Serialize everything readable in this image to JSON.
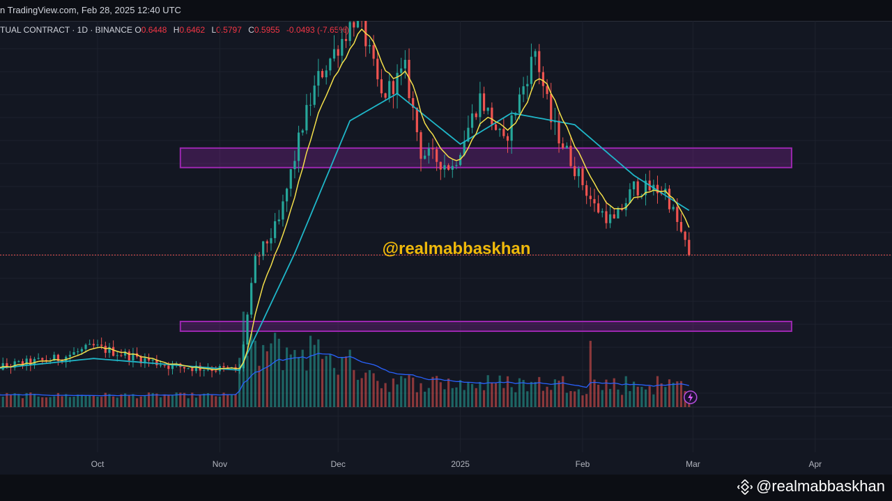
{
  "header": {
    "published": "n TradingView.com, Feb 28, 2025 12:40 UTC"
  },
  "legend": {
    "symbol": "TUAL CONTRACT · 1D · BINANCE",
    "o_label": "O",
    "o": "0.6448",
    "h_label": "H",
    "h": "0.6462",
    "l_label": "L",
    "l": "0.5797",
    "c_label": "C",
    "c": "0.5955",
    "change": "-0.0493 (-7.65%)"
  },
  "overlay_text": "@realmabbaskhan",
  "watermark": "@realmabbaskhan",
  "colors": {
    "background": "#131722",
    "up": "#26a69a",
    "down": "#ef5350",
    "ema_fast": "#f5e04a",
    "ema_slow": "#1fb7c9",
    "zone": "#9c27b0",
    "overlay": "#f0b90b",
    "volume_ma": "#2962ff"
  },
  "chart_data": {
    "type": "candlestick",
    "x_tick_labels": [
      "Oct",
      "Nov",
      "Dec",
      "2025",
      "Feb",
      "Mar",
      "Apr"
    ],
    "x_tick_dates": [
      "2024-10-01",
      "2024-11-01",
      "2024-12-01",
      "2025-01-01",
      "2025-02-01",
      "2025-03-01",
      "2025-04-01"
    ],
    "last_price": 0.5955,
    "price_keypoints": [
      {
        "date": "2024-09-01",
        "price": 0.3
      },
      {
        "date": "2024-09-21",
        "price": 0.33
      },
      {
        "date": "2024-09-30",
        "price": 0.36
      },
      {
        "date": "2024-10-20",
        "price": 0.31
      },
      {
        "date": "2024-11-06",
        "price": 0.3
      },
      {
        "date": "2024-11-10",
        "price": 0.58
      },
      {
        "date": "2024-11-16",
        "price": 0.68
      },
      {
        "date": "2024-11-22",
        "price": 0.93
      },
      {
        "date": "2024-11-26",
        "price": 1.05
      },
      {
        "date": "2024-12-02",
        "price": 1.15
      },
      {
        "date": "2024-12-06",
        "price": 1.22
      },
      {
        "date": "2024-12-12",
        "price": 1.0
      },
      {
        "date": "2024-12-18",
        "price": 1.07
      },
      {
        "date": "2024-12-22",
        "price": 0.86
      },
      {
        "date": "2024-12-30",
        "price": 0.82
      },
      {
        "date": "2025-01-06",
        "price": 1.0
      },
      {
        "date": "2025-01-12",
        "price": 0.88
      },
      {
        "date": "2025-01-20",
        "price": 1.12
      },
      {
        "date": "2025-01-24",
        "price": 0.94
      },
      {
        "date": "2025-01-30",
        "price": 0.82
      },
      {
        "date": "2025-02-04",
        "price": 0.72
      },
      {
        "date": "2025-02-09",
        "price": 0.68
      },
      {
        "date": "2025-02-14",
        "price": 0.77
      },
      {
        "date": "2025-02-22",
        "price": 0.76
      },
      {
        "date": "2025-02-28",
        "price": 0.5955
      }
    ],
    "ema_slow_keypoints": [
      {
        "date": "2024-09-01",
        "price": 0.3
      },
      {
        "date": "2024-09-30",
        "price": 0.33
      },
      {
        "date": "2024-11-06",
        "price": 0.3
      },
      {
        "date": "2024-11-20",
        "price": 0.6
      },
      {
        "date": "2024-12-04",
        "price": 0.94
      },
      {
        "date": "2024-12-16",
        "price": 1.01
      },
      {
        "date": "2025-01-01",
        "price": 0.88
      },
      {
        "date": "2025-01-14",
        "price": 0.96
      },
      {
        "date": "2025-01-30",
        "price": 0.93
      },
      {
        "date": "2025-02-14",
        "price": 0.8
      },
      {
        "date": "2025-02-28",
        "price": 0.71
      }
    ],
    "zones": [
      {
        "date_start": "2024-10-22",
        "date_end": "2025-03-26",
        "price_low": 0.82,
        "price_high": 0.87
      },
      {
        "date_start": "2024-10-22",
        "date_end": "2025-03-26",
        "price_low": 0.4,
        "price_high": 0.425
      }
    ],
    "volume_relative": "volume spikes in early November, late November and early February"
  }
}
